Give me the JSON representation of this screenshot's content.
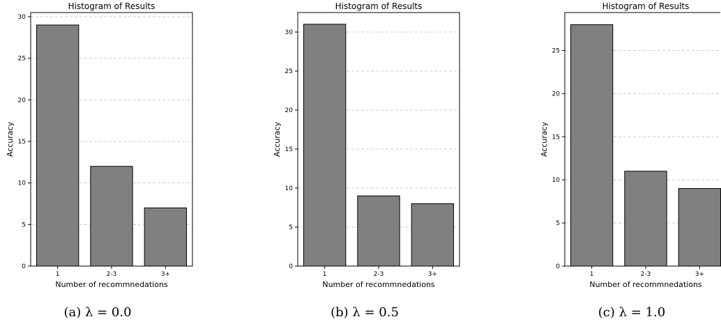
{
  "chart_data": [
    {
      "type": "bar",
      "title": "Histogram of Results",
      "xlabel": "Number of recommnedations",
      "ylabel": "Accuracy",
      "categories": [
        "1",
        "2-3",
        "3+"
      ],
      "values": [
        29,
        12,
        7
      ],
      "ylim": [
        0,
        30.5
      ],
      "yticks": [
        0,
        5,
        10,
        15,
        20,
        25,
        30
      ],
      "grid": "y",
      "bar_color": "#808080",
      "caption": "(a) λ = 0.0"
    },
    {
      "type": "bar",
      "title": "Histogram of Results",
      "xlabel": "Number of recommnedations",
      "ylabel": "Accuracy",
      "categories": [
        "1",
        "2-3",
        "3+"
      ],
      "values": [
        31,
        9,
        8
      ],
      "ylim": [
        0,
        32.5
      ],
      "yticks": [
        0,
        5,
        10,
        15,
        20,
        25,
        30
      ],
      "grid": "y",
      "bar_color": "#808080",
      "caption": "(b) λ = 0.5"
    },
    {
      "type": "bar",
      "title": "Histogram of Results",
      "xlabel": "Number of recommnedations",
      "ylabel": "Accuracy",
      "categories": [
        "1",
        "2-3",
        "3+"
      ],
      "values": [
        28,
        11,
        9
      ],
      "ylim": [
        0,
        29.4
      ],
      "yticks": [
        0,
        5,
        10,
        15,
        20,
        25
      ],
      "grid": "y",
      "bar_color": "#808080",
      "caption": "(c) λ = 1.0"
    }
  ]
}
